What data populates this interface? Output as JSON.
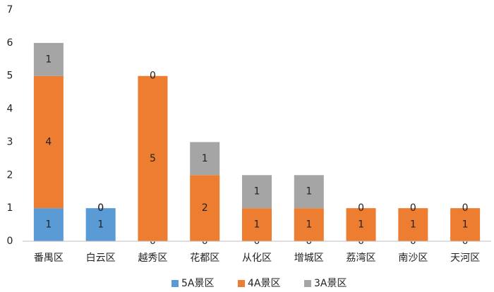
{
  "chart_data": {
    "type": "stacked_bar",
    "categories": [
      "番禺区",
      "白云区",
      "越秀区",
      "花都区",
      "从化区",
      "增城区",
      "荔湾区",
      "南沙区",
      "天河区"
    ],
    "series": [
      {
        "name": "5A景区",
        "color": "#5b9bd5",
        "values": [
          1,
          1,
          0,
          0,
          0,
          0,
          0,
          0,
          0
        ]
      },
      {
        "name": "4A景区",
        "color": "#ed7d31",
        "values": [
          4,
          0,
          5,
          2,
          1,
          1,
          1,
          1,
          1
        ]
      },
      {
        "name": "3A景区",
        "color": "#a5a5a5",
        "values": [
          1,
          0,
          0,
          1,
          1,
          1,
          0,
          0,
          0
        ]
      }
    ],
    "ylim": [
      0,
      7
    ],
    "yticks": [
      0,
      1,
      2,
      3,
      4,
      5,
      6,
      7
    ],
    "grid": false,
    "legend": "bottom"
  }
}
